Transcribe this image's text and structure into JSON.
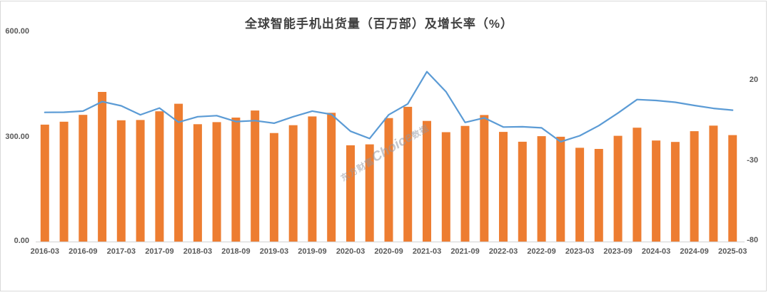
{
  "title": "全球智能手机出货量（百万部）及增长率（%）",
  "watermark": {
    "prefix": "东方财富",
    "brand": "Choice",
    "suffix": "数据"
  },
  "colors": {
    "bar": "#ED7D31",
    "line": "#5B9BD5",
    "axis_text": "#595959",
    "title_text": "#404040",
    "axis_line": "#D9D9D9",
    "border": "#D9D9D9"
  },
  "left_axis": {
    "ticks": [
      "600.00",
      "300.00",
      "0.00"
    ]
  },
  "right_axis": {
    "ticks": [
      "20",
      "-30",
      "-80"
    ]
  },
  "chart_data": {
    "type": "bar+line",
    "title": "全球智能手机出货量（百万部）及增长率（%）",
    "x": [
      "2016-03",
      "2016-06",
      "2016-09",
      "2016-12",
      "2017-03",
      "2017-06",
      "2017-09",
      "2017-12",
      "2018-03",
      "2018-06",
      "2018-09",
      "2018-12",
      "2019-03",
      "2019-06",
      "2019-09",
      "2019-12",
      "2020-03",
      "2020-06",
      "2020-09",
      "2020-12",
      "2021-03",
      "2021-06",
      "2021-09",
      "2021-12",
      "2022-03",
      "2022-06",
      "2022-09",
      "2022-12",
      "2023-03",
      "2023-06",
      "2023-09",
      "2023-12",
      "2024-03",
      "2024-06",
      "2024-09",
      "2024-12",
      "2025-03"
    ],
    "x_tick_labels": [
      "2016-03",
      "2016-09",
      "2017-03",
      "2017-09",
      "2018-03",
      "2018-09",
      "2019-03",
      "2019-09",
      "2020-03",
      "2020-09",
      "2021-03",
      "2021-09",
      "2022-03",
      "2022-09",
      "2023-03",
      "2023-09",
      "2024-03",
      "2024-09",
      "2025-03"
    ],
    "series": [
      {
        "name": "出货量（百万部）",
        "type": "bar",
        "axis": "left",
        "color": "#ED7D31",
        "values": [
          334.9,
          343.3,
          362.9,
          428.5,
          347.4,
          348.2,
          373.1,
          394.6,
          336.1,
          342.0,
          355.2,
          375.4,
          310.8,
          333.2,
          358.3,
          368.8,
          275.8,
          278.4,
          353.6,
          385.9,
          345.5,
          313.2,
          331.2,
          362.4,
          314.1,
          286.0,
          301.9,
          300.3,
          268.5,
          265.3,
          302.8,
          326.1,
          289.4,
          285.4,
          316.1,
          332.1,
          304.9
        ]
      },
      {
        "name": "增长率（%）",
        "type": "line",
        "axis": "right",
        "color": "#5B9BD5",
        "values": [
          0.2,
          0.3,
          1.0,
          6.9,
          4.3,
          -1.3,
          2.9,
          -5.9,
          -2.5,
          -1.8,
          -5.5,
          -4.9,
          -6.5,
          -2.5,
          1.0,
          -1.0,
          -11.5,
          -16.0,
          -1.3,
          5.5,
          25.5,
          13.0,
          -6.0,
          -3.2,
          -8.9,
          -8.7,
          -9.4,
          -18.0,
          -14.3,
          -8.0,
          -0.2,
          8.2,
          7.6,
          6.5,
          4.5,
          2.7,
          1.6
        ]
      }
    ],
    "left_ylim": [
      0,
      600
    ],
    "right_ylim": [
      -80,
      20
    ],
    "left_ticks": [
      0,
      300,
      600
    ],
    "right_ticks": [
      -80,
      -30,
      20
    ],
    "grid": false,
    "legend": "none"
  }
}
